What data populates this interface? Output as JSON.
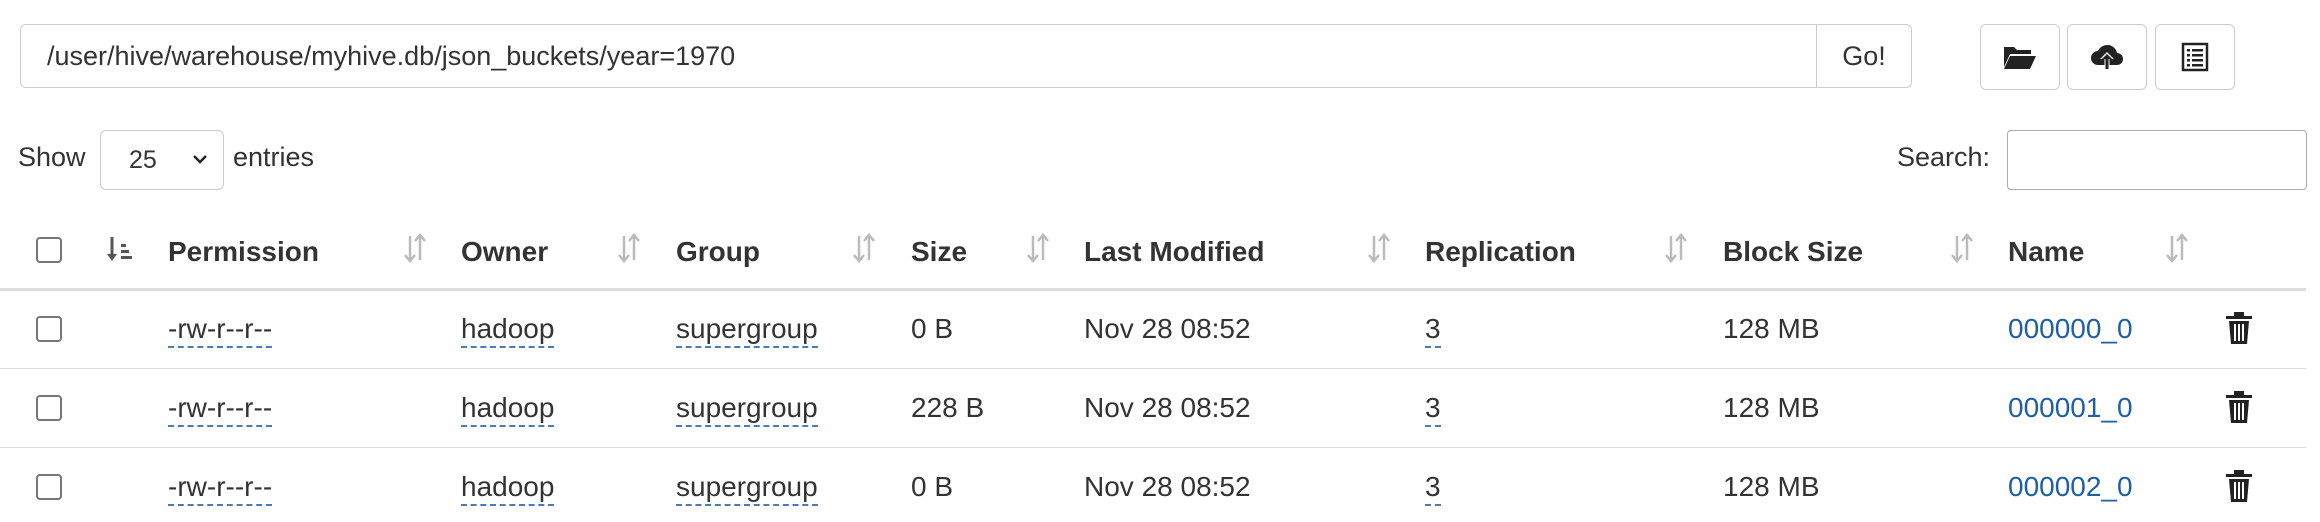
{
  "path": {
    "value": "/user/hive/warehouse/myhive.db/json_buckets/year=1970",
    "go_label": "Go!"
  },
  "toolbar": [
    {
      "name": "create-directory-button",
      "icon": "folder-open-icon"
    },
    {
      "name": "upload-button",
      "icon": "cloud-upload-icon"
    },
    {
      "name": "cut-paste-button",
      "icon": "list-alt-icon"
    }
  ],
  "length": {
    "show_label": "Show",
    "selected": "25",
    "entries_label": "entries"
  },
  "search": {
    "label": "Search:",
    "value": ""
  },
  "table": {
    "headers": [
      "Permission",
      "Owner",
      "Group",
      "Size",
      "Last Modified",
      "Replication",
      "Block Size",
      "Name"
    ],
    "rows": [
      {
        "permission": "-rw-r--r--",
        "owner": "hadoop",
        "group": "supergroup",
        "size": "0 B",
        "modified": "Nov 28 08:52",
        "replication": "3",
        "block_size": "128 MB",
        "name": "000000_0"
      },
      {
        "permission": "-rw-r--r--",
        "owner": "hadoop",
        "group": "supergroup",
        "size": "228 B",
        "modified": "Nov 28 08:52",
        "replication": "3",
        "block_size": "128 MB",
        "name": "000001_0"
      },
      {
        "permission": "-rw-r--r--",
        "owner": "hadoop",
        "group": "supergroup",
        "size": "0 B",
        "modified": "Nov 28 08:52",
        "replication": "3",
        "block_size": "128 MB",
        "name": "000002_0"
      }
    ]
  },
  "colors": {
    "link": "#1f5fa8",
    "dotted_underline": "#4a7bb7",
    "border": "#cccccc",
    "text": "#333333"
  }
}
